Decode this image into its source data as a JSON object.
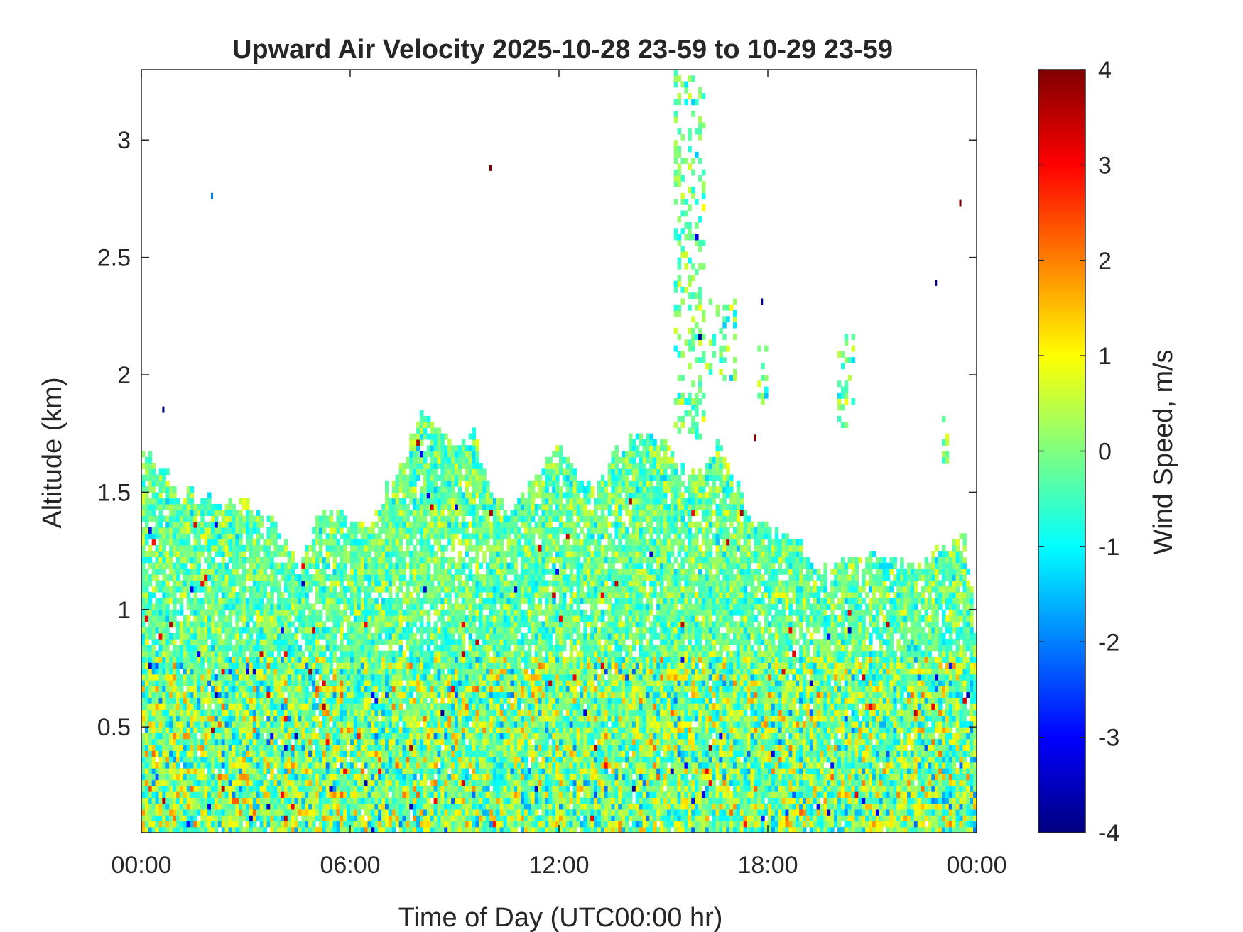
{
  "chart_data": {
    "type": "heatmap",
    "title": "Upward Air Velocity 2025-10-28 23-59 to 10-29 23-59",
    "xlabel": "Time of Day (UTC00:00 hr)",
    "ylabel": "Altitude (km)",
    "x_ticks": [
      "00:00",
      "06:00",
      "12:00",
      "18:00",
      "00:00"
    ],
    "x_tick_hours": [
      0,
      6,
      12,
      18,
      24
    ],
    "xlim_hours": [
      0,
      24
    ],
    "y_ticks": [
      "0.5",
      "1",
      "1.5",
      "2",
      "2.5",
      "3"
    ],
    "y_tick_values": [
      0.5,
      1,
      1.5,
      2,
      2.5,
      3
    ],
    "ylim": [
      0.05,
      3.3
    ],
    "colorbar": {
      "label": "Wind Speed, m/s",
      "ticks": [
        "4",
        "3",
        "2",
        "1",
        "0",
        "-1",
        "-2",
        "-3",
        "-4"
      ],
      "tick_values": [
        4,
        3,
        2,
        1,
        0,
        -1,
        -2,
        -3,
        -4
      ],
      "clim": [
        -4,
        4
      ],
      "colormap": "jet"
    },
    "cloud_top_km": [
      [
        0.0,
        1.65
      ],
      [
        0.5,
        1.6
      ],
      [
        1.0,
        1.5
      ],
      [
        2.0,
        1.45
      ],
      [
        3.0,
        1.45
      ],
      [
        3.8,
        1.35
      ],
      [
        4.5,
        1.15
      ],
      [
        5.0,
        1.38
      ],
      [
        5.7,
        1.38
      ],
      [
        6.5,
        1.35
      ],
      [
        7.0,
        1.5
      ],
      [
        7.5,
        1.6
      ],
      [
        8.0,
        1.85
      ],
      [
        8.5,
        1.75
      ],
      [
        9.0,
        1.7
      ],
      [
        9.5,
        1.75
      ],
      [
        10.0,
        1.5
      ],
      [
        10.5,
        1.4
      ],
      [
        11.0,
        1.5
      ],
      [
        11.5,
        1.6
      ],
      [
        12.0,
        1.7
      ],
      [
        12.5,
        1.55
      ],
      [
        13.0,
        1.5
      ],
      [
        13.5,
        1.65
      ],
      [
        14.0,
        1.7
      ],
      [
        14.5,
        1.75
      ],
      [
        15.0,
        1.7
      ],
      [
        15.5,
        1.6
      ],
      [
        16.0,
        1.55
      ],
      [
        16.5,
        1.7
      ],
      [
        17.0,
        1.55
      ],
      [
        17.5,
        1.35
      ],
      [
        18.0,
        1.35
      ],
      [
        18.5,
        1.3
      ],
      [
        19.0,
        1.25
      ],
      [
        19.5,
        1.15
      ],
      [
        20.0,
        1.2
      ],
      [
        20.5,
        1.2
      ],
      [
        21.0,
        1.22
      ],
      [
        22.0,
        1.18
      ],
      [
        23.0,
        1.25
      ],
      [
        23.6,
        1.3
      ],
      [
        24.0,
        0.85
      ]
    ],
    "plumes": [
      {
        "x": [
          15.2,
          16.1
        ],
        "y": [
          1.7,
          3.3
        ]
      },
      {
        "x": [
          16.0,
          17.0
        ],
        "y": [
          1.95,
          2.3
        ]
      },
      {
        "x": [
          17.6,
          17.9
        ],
        "y": [
          1.85,
          2.1
        ]
      },
      {
        "x": [
          20.0,
          20.5
        ],
        "y": [
          1.75,
          2.15
        ]
      },
      {
        "x": [
          23.0,
          23.2
        ],
        "y": [
          1.6,
          1.8
        ]
      }
    ],
    "low_level_layer_top_km": 0.8,
    "notable_values": [
      {
        "t": 10.0,
        "alt": 2.87,
        "w": 4
      },
      {
        "t": 23.5,
        "alt": 2.72,
        "w": 4
      },
      {
        "t": 2.0,
        "alt": 2.75,
        "w": -2
      },
      {
        "t": 0.6,
        "alt": 1.84,
        "w": -4
      },
      {
        "t": 22.8,
        "alt": 2.38,
        "w": -4
      },
      {
        "t": 17.8,
        "alt": 2.3,
        "w": -4
      },
      {
        "t": 17.6,
        "alt": 1.72,
        "w": 4
      }
    ]
  }
}
